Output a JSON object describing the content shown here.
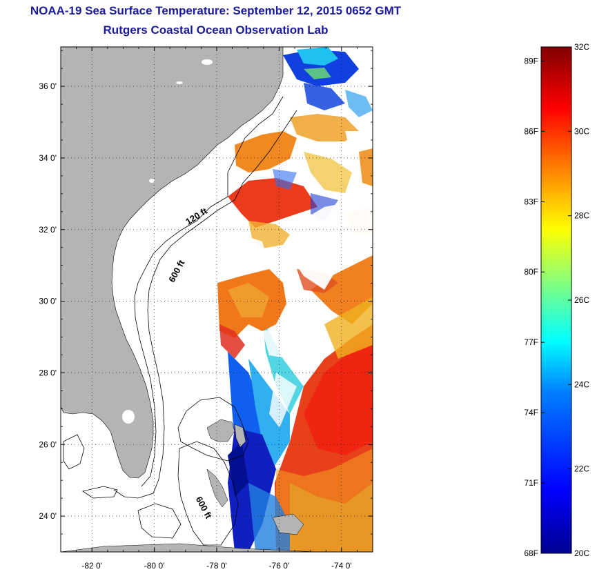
{
  "header": {
    "title": "NOAA-19 Sea Surface Temperature:  September 12, 2015 0652 GMT",
    "subtitle": "Rutgers Coastal Ocean Observation Lab"
  },
  "map": {
    "lat_range": [
      23,
      37.1
    ],
    "lon_range": [
      -83,
      -73
    ],
    "lat_ticks": [
      {
        "value": 24,
        "label": "24 0'"
      },
      {
        "value": 26,
        "label": "26 0'"
      },
      {
        "value": 28,
        "label": "28 0'"
      },
      {
        "value": 30,
        "label": "30 0'"
      },
      {
        "value": 32,
        "label": "32 0'"
      },
      {
        "value": 34,
        "label": "34 0'"
      },
      {
        "value": 36,
        "label": "36 0'"
      }
    ],
    "lon_ticks": [
      {
        "value": -82,
        "label": "-82 0'"
      },
      {
        "value": -80,
        "label": "-80 0'"
      },
      {
        "value": -78,
        "label": "-78 0'"
      },
      {
        "value": -76,
        "label": "-76 0'"
      },
      {
        "value": -74,
        "label": "-74 0'"
      }
    ],
    "contour_labels": [
      {
        "text": "120 ft",
        "lon": -78.6,
        "lat": 32.3,
        "rot": -32
      },
      {
        "text": "600 ft",
        "lon": -79.2,
        "lat": 30.8,
        "rot": -62
      },
      {
        "text": "600 ft",
        "lon": -78.5,
        "lat": 24.2,
        "rot": 62
      }
    ],
    "land_color": "#b4b4b4",
    "grid": "dotted"
  },
  "colorbar": {
    "range_c": [
      20,
      32
    ],
    "celsius_ticks": [
      {
        "value": 32,
        "label": "32C"
      },
      {
        "value": 30,
        "label": "30C"
      },
      {
        "value": 28,
        "label": "28C"
      },
      {
        "value": 26,
        "label": "26C"
      },
      {
        "value": 24,
        "label": "24C"
      },
      {
        "value": 22,
        "label": "22C"
      },
      {
        "value": 20,
        "label": "20C"
      }
    ],
    "fahrenheit_ticks": [
      {
        "value": 89,
        "label": "89F"
      },
      {
        "value": 86,
        "label": "86F"
      },
      {
        "value": 83,
        "label": "83F"
      },
      {
        "value": 80,
        "label": "80F"
      },
      {
        "value": 77,
        "label": "77F"
      },
      {
        "value": 74,
        "label": "74F"
      },
      {
        "value": 71,
        "label": "71F"
      },
      {
        "value": 68,
        "label": "68F"
      }
    ],
    "colors": [
      "#00008f",
      "#0000ff",
      "#0080ff",
      "#00ffff",
      "#80ff80",
      "#ffff00",
      "#ff8000",
      "#ff0000",
      "#800000"
    ]
  }
}
